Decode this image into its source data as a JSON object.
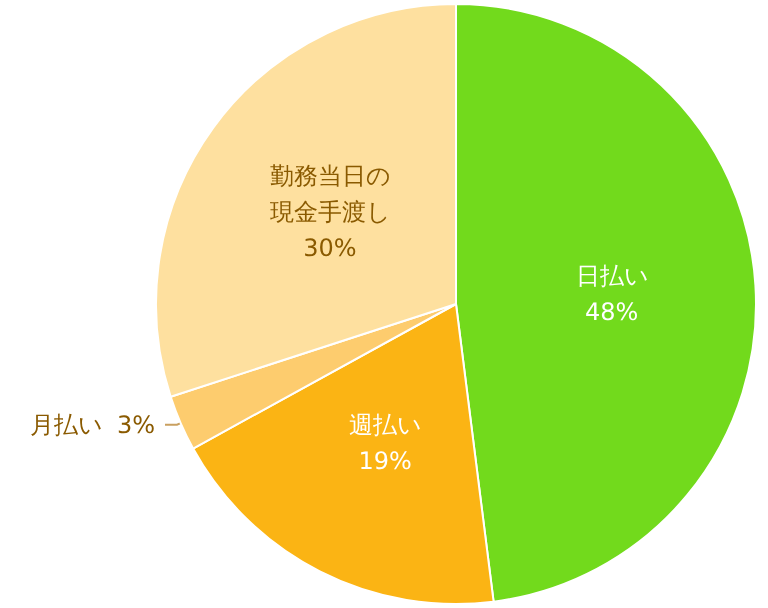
{
  "chart_data": {
    "type": "pie",
    "categories": [
      "日払い",
      "週払い",
      "月払い",
      "勤務当日の現金手渡し"
    ],
    "values": [
      48,
      19,
      3,
      30
    ],
    "value_labels": [
      "48%",
      "19%",
      "3%",
      "30%"
    ],
    "colors": [
      "#72da1c",
      "#fbb414",
      "#fdcc6e",
      "#fee09f"
    ],
    "legend": false
  }
}
